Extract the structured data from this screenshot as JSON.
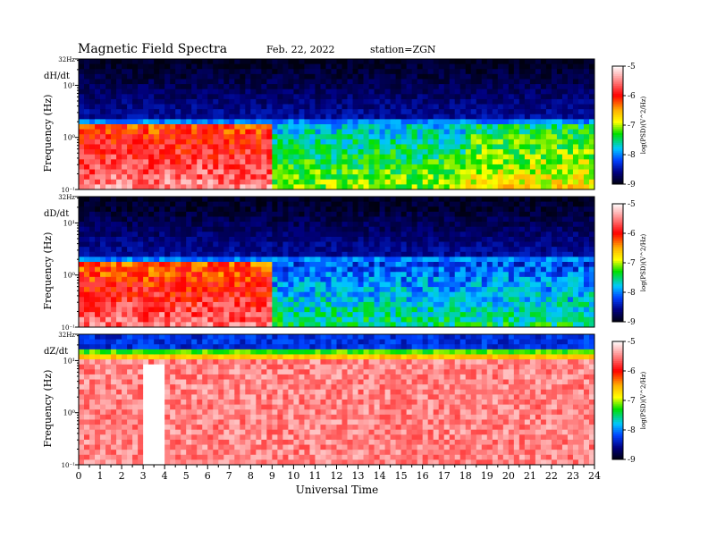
{
  "header": {
    "title": "Magnetic  Field  Spectra",
    "date": "Feb. 22, 2022",
    "station": "station=ZGN"
  },
  "colorbar": {
    "label": "log(PSD)(V^2/Hz)",
    "ticks": [
      "-5",
      "-6",
      "-7",
      "-8",
      "-9"
    ],
    "colors": [
      "#ffffff",
      "#ff0000",
      "#ffb000",
      "#ffff00",
      "#00e000",
      "#00ffff",
      "#0040ff",
      "#000080",
      "#000010"
    ]
  },
  "chart_data": {
    "type": "heatmap",
    "xlabel": "Universal Time",
    "x_ticks": [
      "0",
      "1",
      "2",
      "3",
      "4",
      "5",
      "6",
      "7",
      "8",
      "9",
      "10",
      "11",
      "12",
      "13",
      "14",
      "15",
      "16",
      "17",
      "18",
      "19",
      "20",
      "21",
      "22",
      "23",
      "24"
    ],
    "xlim": [
      0,
      24
    ],
    "ylabel": "Frequency  (Hz)",
    "y_ticks": [
      "32Hz",
      "10¹",
      "10⁰",
      "10⁻¹"
    ],
    "y_scale": "log",
    "ylim": [
      0.1,
      32
    ],
    "clim": [
      -9,
      -5
    ],
    "panels": [
      {
        "component": "dH/dt",
        "background_log_psd": -8.5,
        "low_freq_log_psd_active_hours_0_to_9": -6.2,
        "low_freq_log_psd_quiet_hours_9_to_24": -7.8
      },
      {
        "component": "dD/dt",
        "background_log_psd": -8.5,
        "low_freq_log_psd_active_hours_0_to_9": -6.3,
        "low_freq_log_psd_quiet_hours_9_to_24": -8.2
      },
      {
        "component": "dZ/dt",
        "background_log_psd": -5.5,
        "high_freq_log_psd": -8.3,
        "saturated_interval_hours": [
          3,
          4
        ]
      }
    ]
  }
}
